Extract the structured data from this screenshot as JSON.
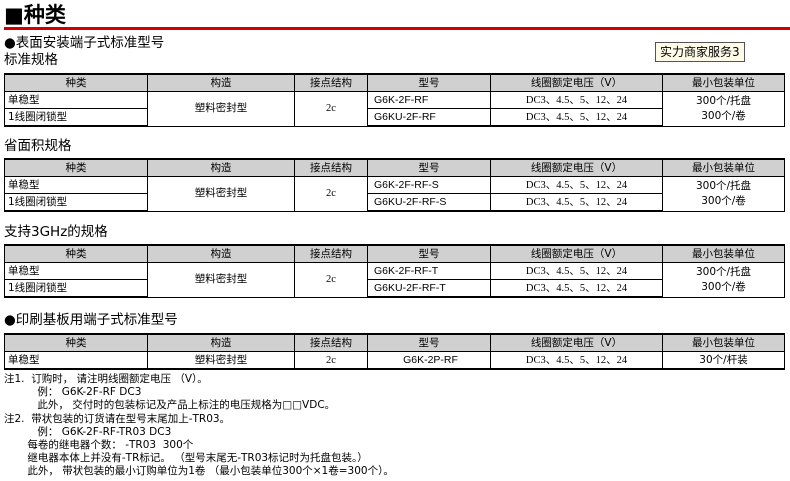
{
  "title": "■种类",
  "badge": "实力商家服务3",
  "headers": [
    "种类",
    "构造",
    "接点结构",
    "型号",
    "线圈额定电压（V）",
    "最小包装单位"
  ],
  "sections": [
    {
      "heading": "●表面安装端子式标准型号",
      "subheading": "标准规格",
      "rows": [
        {
          "type": "单稳型",
          "structure": "塑料密封型",
          "contact": "2c",
          "model": "G6K-2F-RF",
          "voltage": "DC3、4.5、5、12、24",
          "pack": "300个/托盘"
        },
        {
          "type": "1线圈闭锁型",
          "model": "G6KU-2F-RF",
          "voltage": "DC3、4.5、5、12、24",
          "pack": "300个/卷"
        }
      ]
    },
    {
      "subheading": "省面积规格",
      "rows": [
        {
          "type": "单稳型",
          "structure": "塑料密封型",
          "contact": "2c",
          "model": "G6K-2F-RF-S",
          "voltage": "DC3、4.5、5、12、24",
          "pack": "300个/托盘"
        },
        {
          "type": "1线圈闭锁型",
          "model": "G6KU-2F-RF-S",
          "voltage": "DC3、4.5、5、12、24",
          "pack": "300个/卷"
        }
      ]
    },
    {
      "subheading": "支持3GHz的规格",
      "rows": [
        {
          "type": "单稳型",
          "structure": "塑料密封型",
          "contact": "2c",
          "model": "G6K-2F-RF-T",
          "voltage": "DC3、4.5、5、12、24",
          "pack": "300个/托盘"
        },
        {
          "type": "1线圈闭锁型",
          "model": "G6KU-2F-RF-T",
          "voltage": "DC3、4.5、5、12、24",
          "pack": "300个/卷"
        }
      ]
    },
    {
      "heading": "●印刷基板用端子式标准型号",
      "rows": [
        {
          "type": "单稳型",
          "structure": "塑料密封型",
          "contact": "2c",
          "model": "G6K-2P-RF",
          "voltage": "DC3、4.5、5、12、24",
          "pack": "30个/杆装"
        }
      ]
    }
  ],
  "notes": [
    "注1.  订购时， 请注明线圈额定电压 （V）。",
    "          例： G6K-2F-RF DC3",
    "          此外， 交付时的包装标记及产品上标注的电压规格为□□VDC。",
    "注2.  带状包装的订货请在型号末尾加上-TR03。",
    "          例： G6K-2F-RF-TR03 DC3",
    "       每卷的继电器个数： -TR03  300个",
    "       继电器本体上并没有-TR标记。 （型号末尾无-TR03标记时为托盘包装。）",
    "       此外， 带状包装的最小订购单位为1卷 （最小包装单位300个×1卷=300个）。"
  ]
}
